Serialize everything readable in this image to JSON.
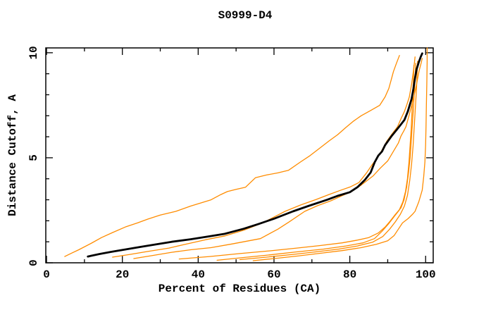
{
  "chart_data": {
    "type": "line",
    "title": "S0999-D4",
    "xlabel": "Percent of Residues (CA)",
    "ylabel": "Distance Cutoff, A",
    "xlim": [
      -0.2,
      102.0
    ],
    "ylim": [
      0,
      10.23
    ],
    "x_ticks": {
      "major": [
        0,
        20,
        40,
        60,
        80,
        100
      ],
      "labels": [
        "0",
        "20",
        "40",
        "60",
        "80",
        "100"
      ],
      "minor_step": 10
    },
    "y_ticks": {
      "major": [
        0,
        5,
        10
      ],
      "labels": [
        "0",
        "5",
        "10"
      ],
      "minor_step": 1
    },
    "grid": false,
    "legend": "none",
    "colors": {
      "highlight": "#000000",
      "other": "#ff8c00",
      "axis": "#000000"
    },
    "series": [
      {
        "name": "model-orange-a",
        "role": "other",
        "width": 1.3,
        "points": [
          [
            4.8,
            0.3
          ],
          [
            6.5,
            0.45
          ],
          [
            8.5,
            0.62
          ],
          [
            11.9,
            0.94
          ],
          [
            14.5,
            1.2
          ],
          [
            17.4,
            1.44
          ],
          [
            21,
            1.72
          ],
          [
            24,
            1.9
          ],
          [
            26.7,
            2.08
          ],
          [
            30,
            2.27
          ],
          [
            34.1,
            2.45
          ],
          [
            38,
            2.7
          ],
          [
            43.4,
            3.0
          ],
          [
            46,
            3.25
          ],
          [
            47.7,
            3.39
          ],
          [
            50,
            3.5
          ],
          [
            52.5,
            3.6
          ],
          [
            55.1,
            4.05
          ],
          [
            58,
            4.18
          ],
          [
            61,
            4.28
          ],
          [
            63.8,
            4.4
          ],
          [
            67,
            4.8
          ],
          [
            69.5,
            5.1
          ],
          [
            72,
            5.45
          ],
          [
            74.5,
            5.8
          ],
          [
            76.8,
            6.1
          ],
          [
            79,
            6.45
          ],
          [
            81,
            6.75
          ],
          [
            83,
            7.0
          ],
          [
            85.5,
            7.25
          ],
          [
            87.9,
            7.5
          ],
          [
            89.3,
            7.9
          ],
          [
            90.3,
            8.3
          ],
          [
            90.9,
            8.7
          ],
          [
            91.5,
            9.1
          ],
          [
            92.3,
            9.5
          ],
          [
            93.1,
            9.87
          ]
        ]
      },
      {
        "name": "model-orange-b",
        "role": "other",
        "width": 1.3,
        "points": [
          [
            17.4,
            0.27
          ],
          [
            22,
            0.4
          ],
          [
            27,
            0.55
          ],
          [
            32.3,
            0.7
          ],
          [
            37,
            0.9
          ],
          [
            42,
            1.1
          ],
          [
            47.1,
            1.28
          ],
          [
            52,
            1.55
          ],
          [
            57,
            1.9
          ],
          [
            62.9,
            2.45
          ],
          [
            67,
            2.75
          ],
          [
            71.2,
            3.02
          ],
          [
            74.5,
            3.25
          ],
          [
            77.7,
            3.46
          ],
          [
            80.2,
            3.62
          ],
          [
            82.4,
            3.82
          ],
          [
            84.5,
            4.3
          ],
          [
            86,
            4.7
          ],
          [
            87.3,
            5.0
          ],
          [
            88.5,
            5.37
          ],
          [
            89.8,
            5.8
          ],
          [
            91.2,
            6.15
          ],
          [
            92.6,
            6.48
          ],
          [
            93.6,
            6.9
          ],
          [
            94.4,
            7.2
          ],
          [
            95,
            7.5
          ],
          [
            95.7,
            7.9
          ],
          [
            96.3,
            8.5
          ],
          [
            96.8,
            9.16
          ],
          [
            97.1,
            9.6
          ],
          [
            97.2,
            9.8
          ]
        ]
      },
      {
        "name": "model-orange-c",
        "role": "other",
        "width": 1.3,
        "points": [
          [
            23,
            0.2
          ],
          [
            28,
            0.35
          ],
          [
            33,
            0.5
          ],
          [
            38,
            0.62
          ],
          [
            43.4,
            0.72
          ],
          [
            49,
            0.9
          ],
          [
            56.4,
            1.15
          ],
          [
            61,
            1.6
          ],
          [
            64,
            1.95
          ],
          [
            68.1,
            2.45
          ],
          [
            71.5,
            2.72
          ],
          [
            75,
            2.95
          ],
          [
            78,
            3.2
          ],
          [
            80.5,
            3.39
          ],
          [
            83,
            3.7
          ],
          [
            86.1,
            4.13
          ],
          [
            88,
            4.5
          ],
          [
            90,
            4.85
          ],
          [
            91.7,
            5.37
          ],
          [
            92.8,
            5.7
          ],
          [
            93.5,
            6.04
          ],
          [
            94.3,
            6.3
          ],
          [
            94.8,
            6.48
          ],
          [
            95.6,
            7.0
          ],
          [
            96.3,
            7.48
          ],
          [
            97,
            8.0
          ],
          [
            97.6,
            8.49
          ],
          [
            98.3,
            9.16
          ],
          [
            98.8,
            9.5
          ],
          [
            99.1,
            9.73
          ]
        ]
      },
      {
        "name": "model-orange-d",
        "role": "other",
        "width": 1.3,
        "points": [
          [
            35,
            0.18
          ],
          [
            43,
            0.3
          ],
          [
            51,
            0.44
          ],
          [
            59,
            0.57
          ],
          [
            66,
            0.7
          ],
          [
            72,
            0.82
          ],
          [
            78,
            0.95
          ],
          [
            82,
            1.08
          ],
          [
            85,
            1.2
          ],
          [
            87.5,
            1.42
          ],
          [
            89.3,
            1.7
          ],
          [
            90.7,
            2.0
          ],
          [
            92,
            2.3
          ],
          [
            93.5,
            2.62
          ],
          [
            94.3,
            3.0
          ],
          [
            95,
            3.6
          ],
          [
            95.5,
            4.3
          ],
          [
            95.9,
            5.0
          ],
          [
            96.2,
            5.8
          ],
          [
            96.5,
            6.6
          ],
          [
            96.8,
            7.4
          ],
          [
            97,
            8.1
          ],
          [
            97.2,
            8.8
          ],
          [
            97.4,
            9.5
          ]
        ]
      },
      {
        "name": "model-orange-e",
        "role": "other",
        "width": 1.3,
        "points": [
          [
            45,
            0.12
          ],
          [
            52,
            0.25
          ],
          [
            59,
            0.38
          ],
          [
            66,
            0.52
          ],
          [
            73,
            0.65
          ],
          [
            79,
            0.8
          ],
          [
            83.5,
            0.95
          ],
          [
            86.5,
            1.15
          ],
          [
            88.5,
            1.5
          ],
          [
            90.2,
            1.85
          ],
          [
            91.7,
            2.2
          ],
          [
            93,
            2.5
          ],
          [
            94,
            2.9
          ],
          [
            94.7,
            3.4
          ],
          [
            95.2,
            4.0
          ],
          [
            95.6,
            4.8
          ],
          [
            95.9,
            5.6
          ],
          [
            96.2,
            6.4
          ],
          [
            96.4,
            7.2
          ],
          [
            96.6,
            8.0
          ],
          [
            96.8,
            8.8
          ],
          [
            96.9,
            9.4
          ]
        ]
      },
      {
        "name": "model-orange-f",
        "role": "other",
        "width": 1.3,
        "points": [
          [
            51,
            0.15
          ],
          [
            58,
            0.27
          ],
          [
            65,
            0.4
          ],
          [
            71,
            0.52
          ],
          [
            77,
            0.65
          ],
          [
            82,
            0.8
          ],
          [
            86,
            0.98
          ],
          [
            88.7,
            1.25
          ],
          [
            90.5,
            1.6
          ],
          [
            92,
            1.95
          ],
          [
            93.3,
            2.3
          ],
          [
            94.4,
            2.7
          ],
          [
            95.2,
            3.2
          ],
          [
            95.8,
            3.9
          ],
          [
            96.3,
            4.7
          ],
          [
            96.7,
            5.6
          ],
          [
            97,
            6.5
          ],
          [
            97.3,
            7.4
          ],
          [
            97.6,
            8.3
          ],
          [
            97.8,
            9.2
          ],
          [
            97.9,
            9.6
          ]
        ]
      },
      {
        "name": "model-orange-g",
        "role": "other",
        "width": 1.3,
        "points": [
          [
            54.5,
            0.1
          ],
          [
            60,
            0.2
          ],
          [
            66,
            0.32
          ],
          [
            72,
            0.45
          ],
          [
            78,
            0.58
          ],
          [
            83,
            0.72
          ],
          [
            87,
            0.88
          ],
          [
            90,
            1.05
          ],
          [
            91.7,
            1.3
          ],
          [
            92.8,
            1.6
          ],
          [
            93.9,
            1.9
          ],
          [
            95.4,
            2.11
          ],
          [
            96.5,
            2.3
          ],
          [
            97.2,
            2.45
          ],
          [
            98.2,
            2.9
          ],
          [
            99.1,
            3.46
          ],
          [
            99.5,
            4.1
          ],
          [
            99.8,
            4.8
          ],
          [
            100,
            5.6
          ],
          [
            100.1,
            6.5
          ],
          [
            100.2,
            7.5
          ],
          [
            100.3,
            8.5
          ],
          [
            100.4,
            9.6
          ],
          [
            100.4,
            10.23
          ]
        ]
      },
      {
        "name": "model-highlight",
        "role": "highlight",
        "width": 2.8,
        "points": [
          [
            10.9,
            0.3
          ],
          [
            14,
            0.42
          ],
          [
            17,
            0.52
          ],
          [
            21,
            0.64
          ],
          [
            25,
            0.76
          ],
          [
            29,
            0.88
          ],
          [
            33,
            1.0
          ],
          [
            38,
            1.12
          ],
          [
            43,
            1.26
          ],
          [
            47,
            1.38
          ],
          [
            52,
            1.62
          ],
          [
            56,
            1.85
          ],
          [
            60,
            2.1
          ],
          [
            65,
            2.45
          ],
          [
            69,
            2.7
          ],
          [
            74,
            3.0
          ],
          [
            77,
            3.2
          ],
          [
            80,
            3.36
          ],
          [
            82,
            3.6
          ],
          [
            84,
            3.95
          ],
          [
            85.5,
            4.3
          ],
          [
            86.6,
            4.8
          ],
          [
            87.5,
            5.1
          ],
          [
            88.5,
            5.3
          ],
          [
            89.3,
            5.6
          ],
          [
            90.3,
            5.85
          ],
          [
            91.1,
            6.05
          ],
          [
            92.2,
            6.3
          ],
          [
            93.1,
            6.5
          ],
          [
            94.4,
            6.8
          ],
          [
            95.3,
            7.2
          ],
          [
            96.3,
            7.8
          ],
          [
            96.8,
            8.3
          ],
          [
            97.2,
            8.8
          ],
          [
            97.6,
            9.2
          ],
          [
            98.2,
            9.55
          ],
          [
            98.7,
            9.8
          ],
          [
            99.1,
            9.97
          ]
        ]
      }
    ]
  }
}
